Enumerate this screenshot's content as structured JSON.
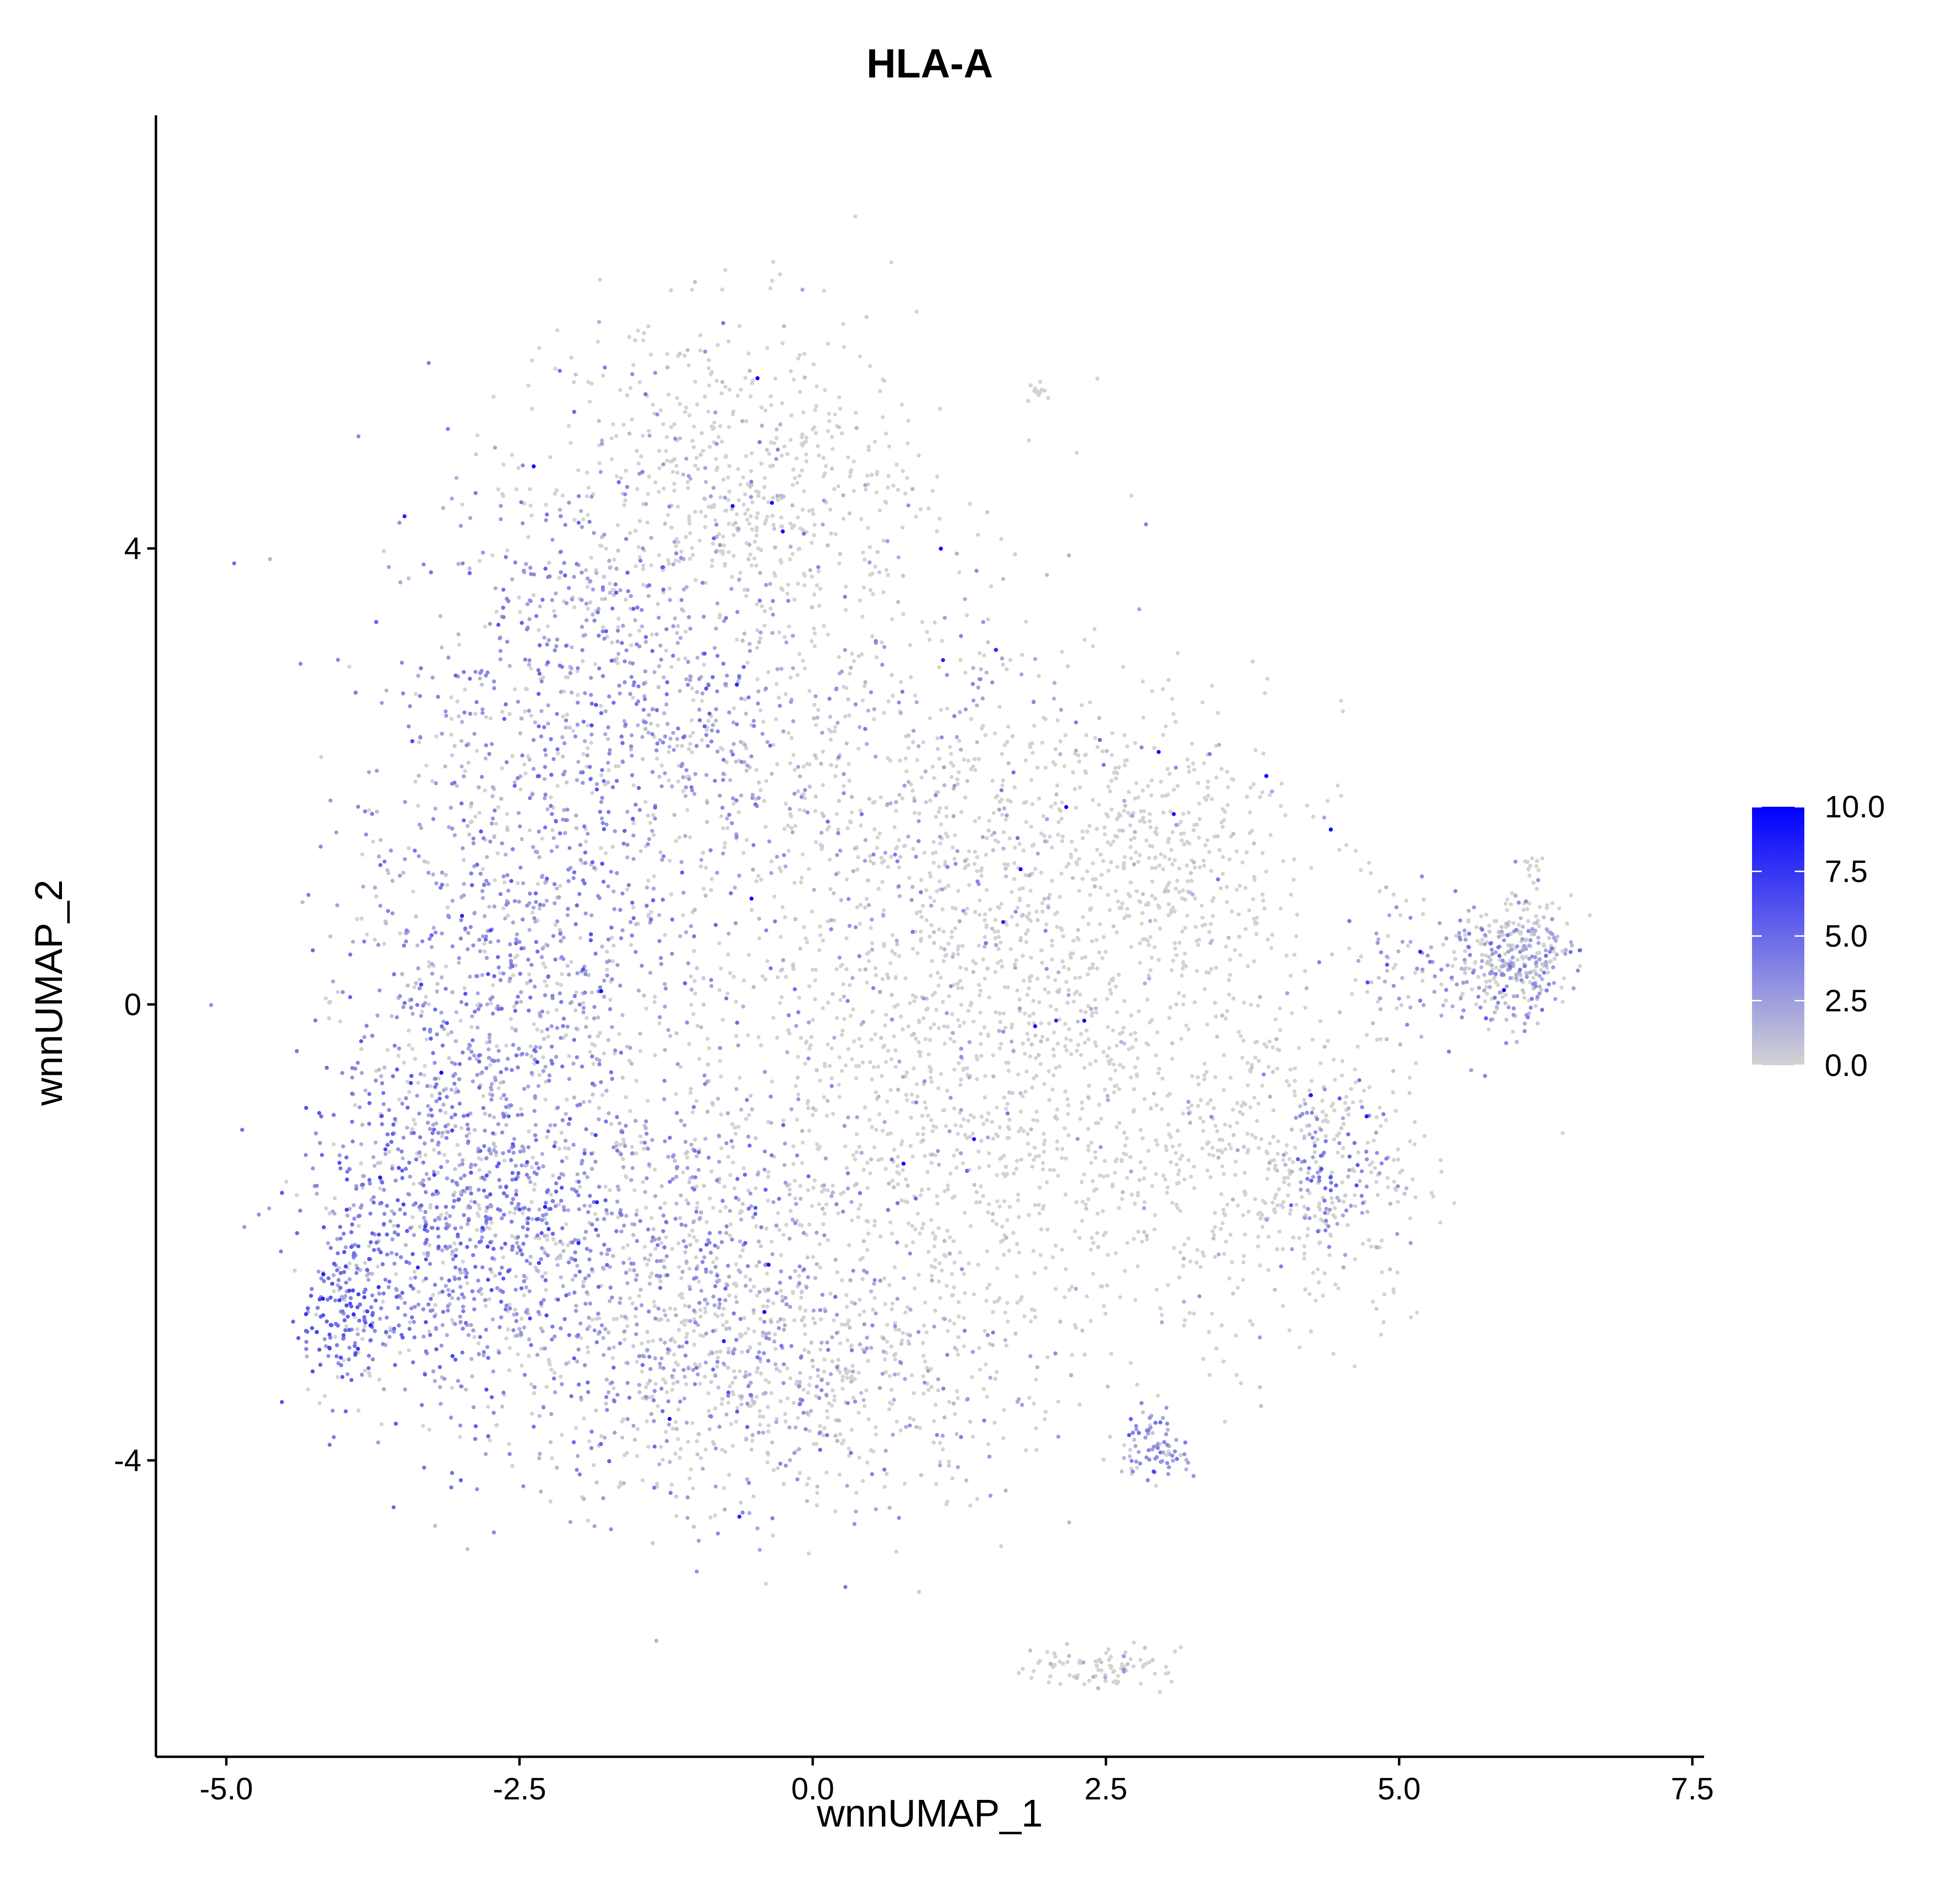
{
  "chart_data": {
    "type": "scatter",
    "title": "HLA-A",
    "xlabel": "wnnUMAP_1",
    "ylabel": "wnnUMAP_2",
    "xlim": [
      -5.6,
      7.6
    ],
    "ylim": [
      -6.6,
      7.8
    ],
    "x_ticks": [
      {
        "value": -5.0,
        "label": "-5.0"
      },
      {
        "value": -2.5,
        "label": "-2.5"
      },
      {
        "value": 0.0,
        "label": "0.0"
      },
      {
        "value": 2.5,
        "label": "2.5"
      },
      {
        "value": 5.0,
        "label": "5.0"
      },
      {
        "value": 7.5,
        "label": "7.5"
      }
    ],
    "y_ticks": [
      {
        "value": -4,
        "label": "-4"
      },
      {
        "value": 0,
        "label": "0"
      },
      {
        "value": 4,
        "label": "4"
      }
    ],
    "color_scale": {
      "min": 0.0,
      "max": 10.0,
      "low_color": "#d3d3d3",
      "high_color": "#0000ff",
      "ticks": [
        {
          "value": 10.0,
          "label": "10.0"
        },
        {
          "value": 7.5,
          "label": "7.5"
        },
        {
          "value": 5.0,
          "label": "5.0"
        },
        {
          "value": 2.5,
          "label": "2.5"
        },
        {
          "value": 0.0,
          "label": "0.0"
        }
      ],
      "legend_placement": "right"
    },
    "grid": false,
    "clusters": [
      {
        "name": "main-upper-left",
        "cx": -1.8,
        "cy": 2.6,
        "sx": 0.9,
        "sy": 1.1,
        "n": 900,
        "expr_mean": 2.8
      },
      {
        "name": "main-top",
        "cx": -0.6,
        "cy": 4.6,
        "sx": 0.8,
        "sy": 0.7,
        "n": 550,
        "expr_mean": 0.6
      },
      {
        "name": "main-center",
        "cx": 0.6,
        "cy": 1.6,
        "sx": 1.1,
        "sy": 1.2,
        "n": 800,
        "expr_mean": 1.6
      },
      {
        "name": "main-center-right",
        "cx": 2.0,
        "cy": 0.2,
        "sx": 1.0,
        "sy": 1.2,
        "n": 700,
        "expr_mean": 0.4
      },
      {
        "name": "main-left",
        "cx": -2.6,
        "cy": 0.2,
        "sx": 0.7,
        "sy": 1.0,
        "n": 650,
        "expr_mean": 2.6
      },
      {
        "name": "main-lower-left",
        "cx": -3.1,
        "cy": -1.9,
        "sx": 0.6,
        "sy": 0.9,
        "n": 850,
        "expr_mean": 3.6
      },
      {
        "name": "main-lower-mid",
        "cx": -1.4,
        "cy": -2.2,
        "sx": 0.9,
        "sy": 1.0,
        "n": 900,
        "expr_mean": 2.4
      },
      {
        "name": "main-bottom",
        "cx": -0.2,
        "cy": -3.3,
        "sx": 1.0,
        "sy": 0.6,
        "n": 650,
        "expr_mean": 1.6
      },
      {
        "name": "main-lower-right",
        "cx": 1.2,
        "cy": -1.4,
        "sx": 1.0,
        "sy": 1.0,
        "n": 600,
        "expr_mean": 0.5
      },
      {
        "name": "tail-left",
        "cx": -4.0,
        "cy": -2.7,
        "sx": 0.18,
        "sy": 0.28,
        "n": 140,
        "expr_mean": 4.8
      },
      {
        "name": "right-wing",
        "cx": 3.9,
        "cy": -1.4,
        "sx": 0.7,
        "sy": 0.8,
        "n": 450,
        "expr_mean": 0.7
      },
      {
        "name": "right-wing-blob",
        "cx": 4.5,
        "cy": -1.5,
        "sx": 0.25,
        "sy": 0.35,
        "n": 120,
        "expr_mean": 3.0
      },
      {
        "name": "upper-right-band",
        "cx": 3.0,
        "cy": 1.4,
        "sx": 0.6,
        "sy": 0.6,
        "n": 300,
        "expr_mean": 0.3
      },
      {
        "name": "right-arm",
        "cx": 5.4,
        "cy": 0.3,
        "sx": 0.45,
        "sy": 0.35,
        "n": 180,
        "expr_mean": 2.4
      },
      {
        "name": "far-right",
        "cx": 6.05,
        "cy": 0.4,
        "sx": 0.22,
        "sy": 0.25,
        "n": 260,
        "expr_mean": 1.8
      },
      {
        "name": "small-cluster",
        "cx": 2.9,
        "cy": -3.9,
        "sx": 0.15,
        "sy": 0.15,
        "n": 80,
        "expr_mean": 3.2
      },
      {
        "name": "bottom-arc",
        "cx": 2.4,
        "cy": -5.8,
        "sx": 0.3,
        "sy": 0.08,
        "n": 90,
        "expr_mean": 0.8
      },
      {
        "name": "top-right-speck",
        "cx": 1.9,
        "cy": 5.4,
        "sx": 0.06,
        "sy": 0.06,
        "n": 12,
        "expr_mean": 0.0
      },
      {
        "name": "far-right-speck",
        "cx": 6.1,
        "cy": 1.2,
        "sx": 0.05,
        "sy": 0.05,
        "n": 10,
        "expr_mean": 0.0
      }
    ]
  }
}
